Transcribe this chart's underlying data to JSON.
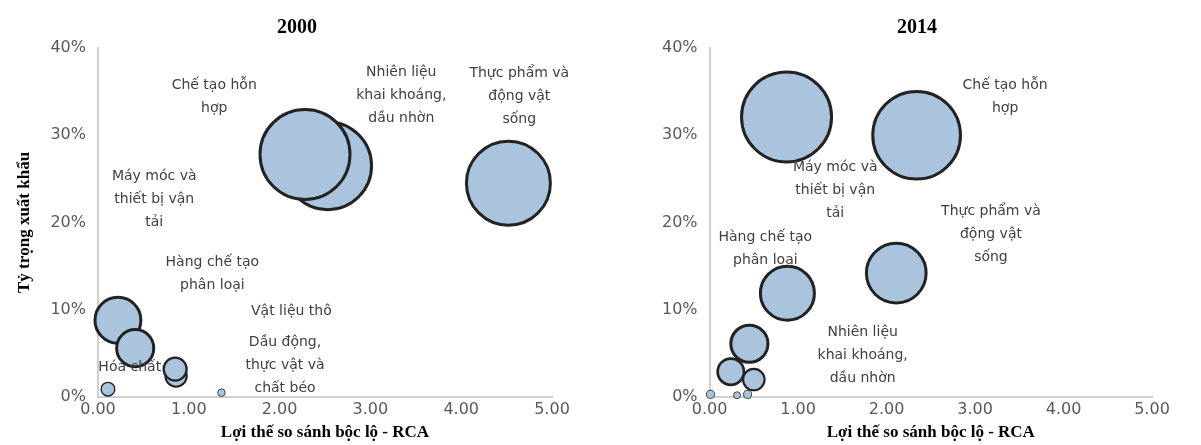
{
  "chart_data": [
    {
      "type": "bubble",
      "title": "2000",
      "xlabel": "Lợi thế so sánh bộc lộ - RCA",
      "ylabel": "Tỷ trọng xuất khẩu",
      "grid": false,
      "xlim": [
        0,
        5
      ],
      "xticks": [
        {
          "value": 0,
          "label": "0.00"
        },
        {
          "value": 1,
          "label": "1.00"
        },
        {
          "value": 2,
          "label": "2.00"
        },
        {
          "value": 3,
          "label": "3.00"
        },
        {
          "value": 4,
          "label": "4.00"
        },
        {
          "value": 5,
          "label": "5.00"
        }
      ],
      "ylim": [
        0,
        40
      ],
      "yticks": [
        {
          "value": 0,
          "label": "0%"
        },
        {
          "value": 10,
          "label": "10%"
        },
        {
          "value": 20,
          "label": "20%"
        },
        {
          "value": 30,
          "label": "30%"
        },
        {
          "value": 40,
          "label": "40%"
        }
      ],
      "series": [
        {
          "color": "#a9c4dc",
          "x": [
            2.53,
            2.28,
            4.52,
            0.22,
            0.41,
            0.86,
            0.85,
            0.11,
            1.36
          ],
          "values": [
            26.5,
            27.8,
            24.5,
            8.8,
            5.6,
            2.4,
            3.2,
            0.9,
            0.5
          ],
          "sizes": [
            0.95,
            1,
            0.87,
            0.26,
            0.17,
            0.056,
            0.065,
            0.023,
            0.007
          ]
        }
      ],
      "annotations": [
        "Chế tạo hỗn hợp",
        "Nhiên liệu khai khoáng, dầu nhờn",
        "Thực phẩm và động vật sống",
        "Máy móc và thiết bị vận tải",
        "Hàng chế tạo phân loại",
        "Vật liệu thô",
        "Dầu động, thực vật và chất béo",
        "Hóa chất"
      ]
    },
    {
      "type": "bubble",
      "title": "2014",
      "xlabel": "Lợi thế so sánh bộc lộ - RCA",
      "grid": false,
      "xlim": [
        0,
        5
      ],
      "xticks": [
        {
          "value": 0,
          "label": "0.00"
        },
        {
          "value": 1,
          "label": "1.00"
        },
        {
          "value": 2,
          "label": "2.00"
        },
        {
          "value": 3,
          "label": "3.00"
        },
        {
          "value": 4,
          "label": "4.00"
        },
        {
          "value": 5,
          "label": "5.00"
        }
      ],
      "ylim": [
        0,
        40
      ],
      "yticks": [
        {
          "value": 0,
          "label": "0%"
        },
        {
          "value": 10,
          "label": "10%"
        },
        {
          "value": 20,
          "label": "20%"
        },
        {
          "value": 30,
          "label": "30%"
        },
        {
          "value": 40,
          "label": "40%"
        }
      ],
      "series": [
        {
          "color": "#a9c4dc",
          "x": [
            0.87,
            2.34,
            2.11,
            0.88,
            0.45,
            0.24,
            0.5,
            0.01,
            0.31,
            0.43
          ],
          "values": [
            32.1,
            30.0,
            14.2,
            11.9,
            6.1,
            2.9,
            2.0,
            0.3,
            0.2,
            0.3
          ],
          "sizes": [
            1,
            0.95,
            0.44,
            0.36,
            0.17,
            0.085,
            0.057,
            0.008,
            0.006,
            0.008
          ]
        }
      ],
      "annotations": [
        "Chế tạo hỗn hợp",
        "Máy móc và thiết bị vận tải",
        "Thực phẩm và động vật sống",
        "Hàng chế tạo phân loại",
        "Nhiên liệu khai khoáng, dầu nhờn"
      ]
    }
  ]
}
